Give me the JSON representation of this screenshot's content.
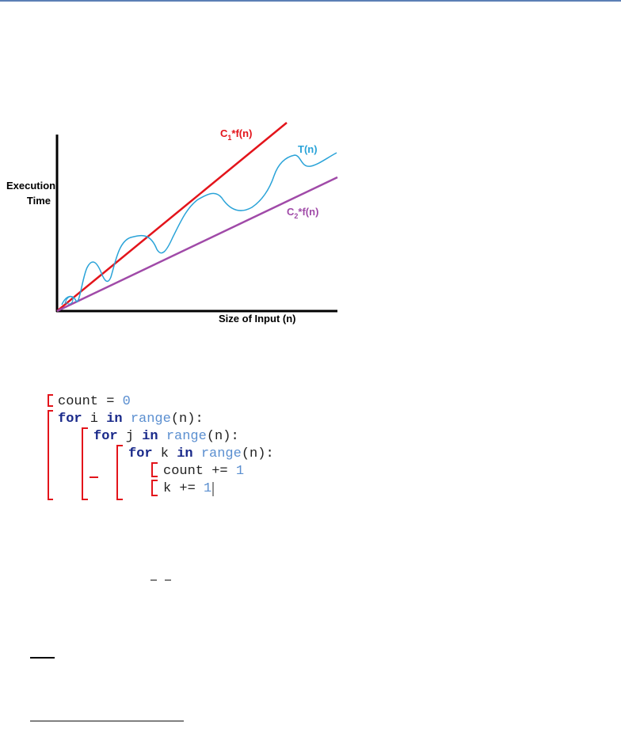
{
  "figure": {
    "y_label": [
      "Execution",
      "Time"
    ],
    "x_label": "Size of Input (n)",
    "upper_label": [
      "C",
      "1",
      "*f(n)"
    ],
    "curve_label": "T(n)",
    "lower_label": [
      "C",
      "2",
      "*f(n)"
    ]
  },
  "code": {
    "lines": [
      [
        "count = ",
        "0"
      ],
      [
        "for",
        " i ",
        "in",
        " ",
        "range",
        "(n):"
      ],
      [
        "for",
        " j ",
        "in",
        " ",
        "range",
        "(n):"
      ],
      [
        "for",
        " k ",
        "in",
        " ",
        "range",
        "(n):"
      ],
      [
        "count += ",
        "1"
      ],
      [
        "k += ",
        "1"
      ]
    ]
  }
}
